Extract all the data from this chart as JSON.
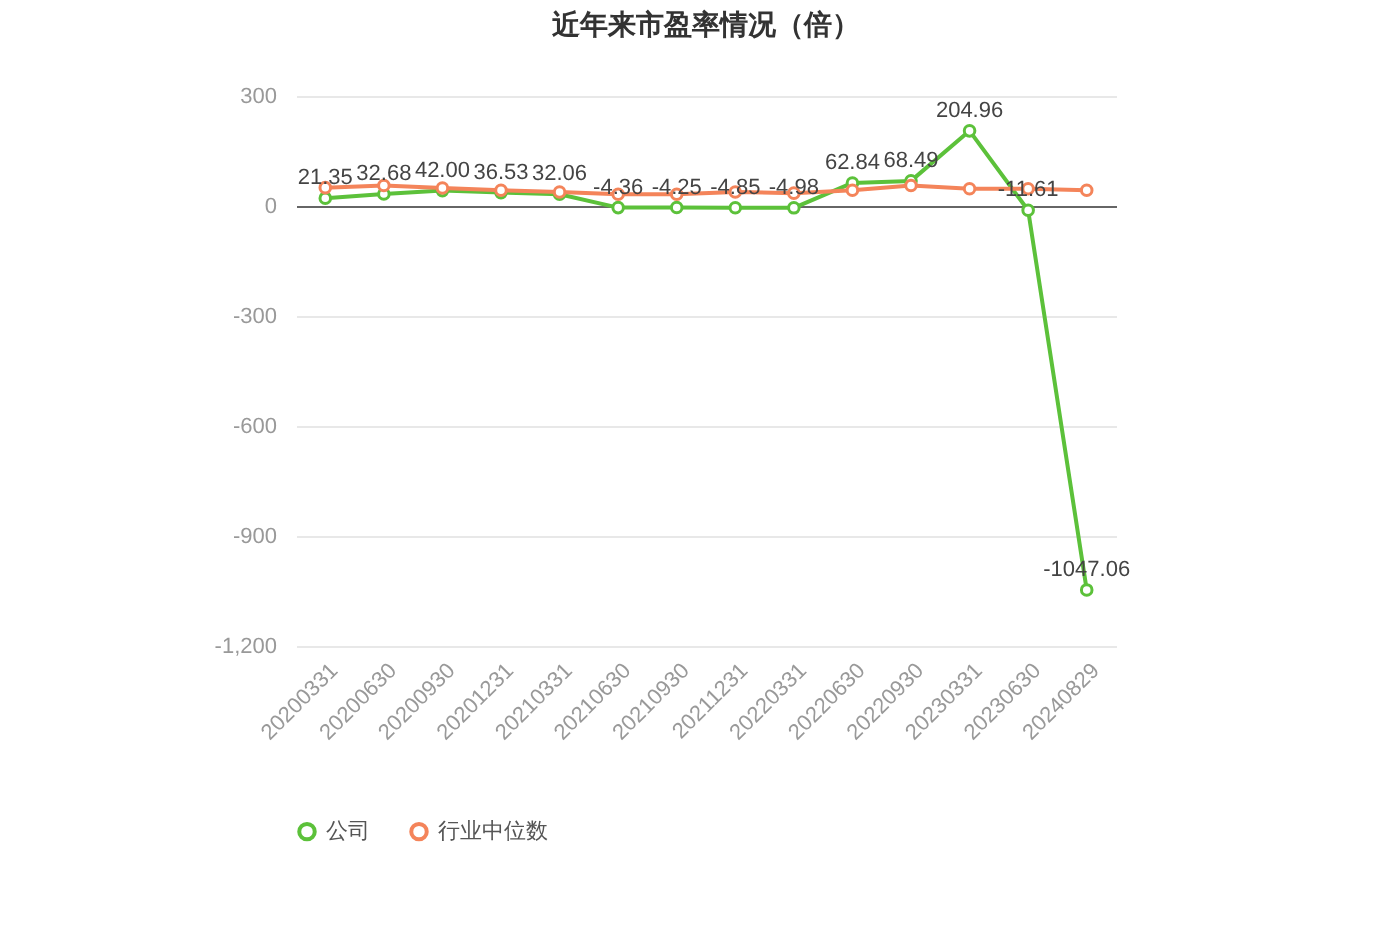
{
  "chart_data": {
    "type": "line",
    "title": "近年来市盈率情况（倍）",
    "categories": [
      "20200331",
      "20200630",
      "20200930",
      "20201231",
      "20210331",
      "20210630",
      "20210930",
      "20211231",
      "20220331",
      "20220630",
      "20220930",
      "20230331",
      "20230630",
      "20240829"
    ],
    "series": [
      {
        "name": "公司",
        "color": "#5cc13a",
        "values": [
          21.35,
          32.68,
          42.0,
          36.53,
          32.06,
          -4.36,
          -4.25,
          -4.85,
          -4.98,
          62.84,
          68.49,
          204.96,
          -11.61,
          -1047.06
        ],
        "value_labels": [
          "21.35",
          "32.68",
          "42.00",
          "36.53",
          "32.06",
          "-4.36",
          "-4.25",
          "-4.85",
          "-4.98",
          "62.84",
          "68.49",
          "204.96",
          "-11.61",
          "-1047.06"
        ]
      },
      {
        "name": "行业中位数",
        "color": "#f4845a",
        "values": [
          50,
          56,
          49,
          43,
          38,
          32,
          32,
          38,
          35,
          43,
          56,
          47,
          47,
          43
        ]
      }
    ],
    "ylim": [
      -1200,
      300
    ],
    "yticks": [
      300,
      0,
      -300,
      -600,
      -900,
      {
        "value": -1200,
        "label": "-1,200"
      }
    ],
    "grid": "y",
    "legend": "bottom",
    "marker": "circle",
    "line_style": "solid"
  }
}
